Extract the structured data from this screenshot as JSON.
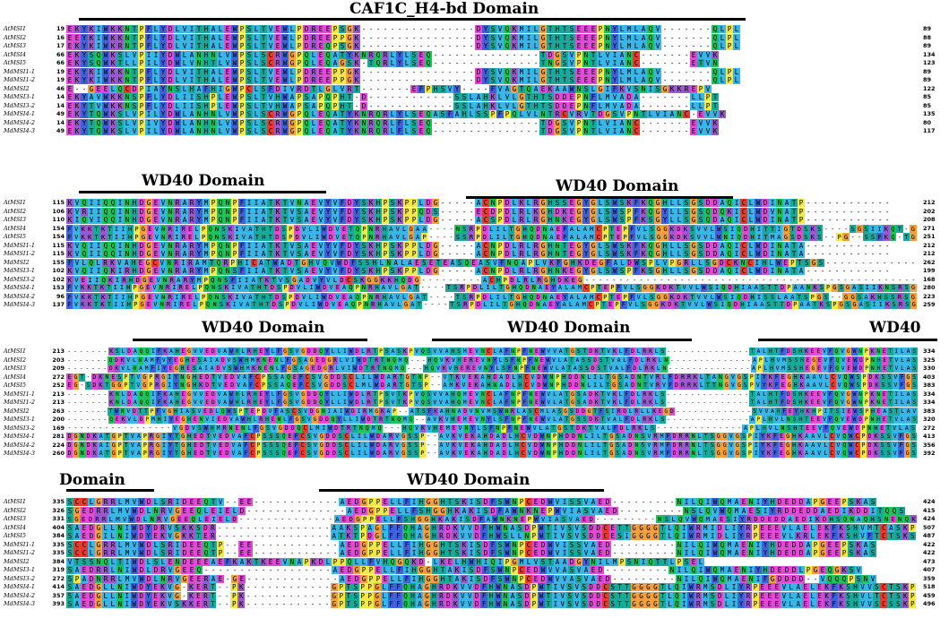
{
  "colors": {
    "cyan": "#39b5e8",
    "blue": "#3f62d8",
    "green": "#1ec45a",
    "teal": "#1aa89a",
    "magenta": "#e04ad6",
    "purple": "#9b59d0",
    "orange": "#f0a040",
    "yellow": "#f2e84a",
    "red": "#e63b2e",
    "gray": "#bfbfbf"
  },
  "domains": [
    {
      "label": "CAF1C_H4-bd Domain"
    },
    {
      "label": "WD40 Domain"
    },
    {
      "label": "WD40 Domain"
    },
    {
      "label": "WD40 Domain"
    },
    {
      "label": "WD40 Domain"
    },
    {
      "label": "WD40"
    },
    {
      "label": "Domain"
    },
    {
      "label": "WD40 Domain"
    }
  ],
  "blocks": [
    {
      "rows": [
        {
          "name": "AtMSI1",
          "start": "19",
          "seq": "EKYKIWKKNTPFLYDLVITHALEWPSLTVEWLPDREEPSGK----------------DYSVQKMILGTHTSEEEPNYLMLAQV-------QLPL",
          "end": "89"
        },
        {
          "name": "AtMSI2",
          "start": "16",
          "seq": "EEYKIWKKNTPFLYDLVITHALEWPSLTVEWLPDREEPPGK----------------DYSVQKMILGTHTSEEEPNYLMLAQV-------QLPL",
          "end": "88"
        },
        {
          "name": "AtMSI3",
          "start": "17",
          "seq": "EKYKIWKRNTPFLYDLVITHALEWPSLTVEWLPDREQPSGK----------------DYSVQKMILGTHTSEEEPNYLMLAQV-------QLPL",
          "end": "89"
        },
        {
          "name": "AtMSI4",
          "start": "66",
          "seq": "EKYSQWKSLVPIIYDWLANHNLVWPSLSCRWGPQLEQATYKNRQRLYLSEQ---------------TDGSVPNTLVIANC-------EVVK",
          "end": "134"
        },
        {
          "name": "AtMSI5",
          "start": "66",
          "seq": "EKYSQWKTLLPILYDWLVNHTLVWPSLSCRWGPQLEQAGSK-TQRLYLSEQ---------------TNGSVPNTLVIANC-------ETVN",
          "end": "123"
        },
        {
          "name": "MdMSI1-1",
          "start": "19",
          "seq": "EKYKIWKKNTPFLYDLVITHALEWPSLTVEWLPDREEPPGK----------------DYSVQKMILGTHTSEEEPNYLMLAQV-------QLPL",
          "end": "89"
        },
        {
          "name": "MdMSI1-2",
          "start": "19",
          "seq": "EKYKIWKKNTPFLYDLVITHALEWPSLTVEWLPDREEPPGK----------------DYSVQKMILGTHTSEEEPNYLMLAQV-------QLPL",
          "end": "89"
        },
        {
          "name": "MdMSI2",
          "start": "46",
          "seq": "E--GEELQCDPIAYNSLHAFHIGWPCLSFDIVRDTLGLVRT-------EFPHSVY----FVAGTQAEKAAWNSLGIFKVSNISGKKREPV",
          "end": "122"
        },
        {
          "name": "MdMSI3-1",
          "start": "14",
          "seq": "EKYAVWKKNSPFLYDLIISHPLEWPSLTVHWAPSAPQPHT-D------------SSLAHKLVLGTHTSDDEPNFLMVADA-------LLPT",
          "end": "85"
        },
        {
          "name": "MdMSI3-2",
          "start": "14",
          "seq": "EKYTVWKKNSPFLYDLIISHPLEWPSLTVHWAPSAPQPHT-D------------SSLAHKLVLGTHTSDDEPNFLMVADA-------LLPT",
          "end": "85"
        },
        {
          "name": "MdMSI4-1",
          "start": "49",
          "seq": "EKYTQWKSLVPILYDWLANHNLVWPSLSCRWGPQLEQATYKNRQRLYLSEQASFAHLSSPFPQLVLNTRCVRVTDGSVPNTLVIANC-EVVK",
          "end": "135"
        },
        {
          "name": "MdMSI4-2",
          "start": "14",
          "seq": "EKYTQWKSLVPIVYDWLANHNLVWPSLSCRWGPQLEQATYKNRQRLFLSEQ---------------TDGSVPNTLVIANC-------EVVK",
          "end": "80"
        },
        {
          "name": "MdMSI4-3",
          "start": "49",
          "seq": "EKYTQWKSLVPILYDWLANHNLVWPSLSCRWGPQLEQATYKNRQRLFLSEQ---------------TDGSVPNTLVIANC-------EVVK",
          "end": "117"
        }
      ]
    },
    {
      "rows": [
        {
          "name": "AtMSI1",
          "start": "115",
          "seq": "KVQIIQQINHDGEVNRARYMPQNPFIIATKTVNAEVYVFDYSKHPSKPPLDG-----ACNPDLKLRGHSSEGYGLSWSKFKQGHLLSGSDDAQICLWDINATP------------",
          "end": "212"
        },
        {
          "name": "AtMSI2",
          "start": "106",
          "seq": "KVRIIQQINHDGEVNRARYMPQNPFIIATKTVSAEVYVFDYSKHPSKPPQDS-----ECDPDLRLKGHDKEGYGLSWSPFKQGYLLSGSQDQKICLWDVNATP------------",
          "end": "202"
        },
        {
          "name": "AtMSI3",
          "start": "110",
          "seq": "KIQVIQQINHDGEVNRARYMPQNPFIIATKTVSAEVYVFDYSKHPSKPPLDG-----ACSPDLRLRGHNKEGYGLSWSPFKSGYLLSGSQDAQICLWDINATP------------",
          "end": "208"
        },
        {
          "name": "AtMSI4",
          "start": "154",
          "seq": "FVKKTKTIIHPGEVNRIRELPQNSKIVATHTDSPDVLIWDVETQPNRHAVLGAA----NSRPDLILTGHQDNAEFALAMCPTEPFVLSGGKDKSVVLWSIQDHITTIGTDSKS----SGSIIKQT-G",
          "end": "271"
        },
        {
          "name": "AtMSI5",
          "start": "154",
          "seq": "FVKKTKTIIHPGEVNRIRELPQNSKIVATHTDSPDVLIWDVETQPNRHAVLGAP----SSRPDLILTGHQDNAEFALAMCPTEPFVLSGGKDKSVVLWNIQDHITMAGSDSKS--PG--SSFKQ-TG",
          "end": "251"
        },
        {
          "name": "MdMSI1-1",
          "start": "115",
          "seq": "KVQIIQQINHDGEVNRARYMPQNPFIIATKTVSAEVYVFDYSKHPSKPPLDG-----ACNPDLRLRGHNTEGYGLSWSKFKQGHLLSGSDDAQICLWDINATA------------",
          "end": "212"
        },
        {
          "name": "MdMSI1-2",
          "start": "115",
          "seq": "KVQIIQQINHDGEVNRARYMPQNPFIIATKTVSAEVYVFDYSKHPSKPPLDG-----ACNPDLRLRGHNTEGYGLSWSKFKQGHLLSGSDDAQICLWDINATA------------",
          "end": "212"
        },
        {
          "name": "MdMSI2",
          "start": "155",
          "seq": "FVLQLRKVAHEGCVNRIRAMTQRPHICATWADTGHVQVWDFSSHLNALAESETEASQEASVFNQAPLVKFGHKDEGFALDWSPLVPGRLLSGDCKNCIHLWEPTSGS-------------",
          "end": "262"
        },
        {
          "name": "MdMSI3-1",
          "start": "102",
          "seq": "KVQIIQKIRHDGEVNRARYMPQNSFIIATKTVSAEVYVFDYSKHPSKPPLDG-----ACNPDLRLRGHNKEGYGLSWSPFKSGHLLSGSDDAQICLWDINATA------------",
          "end": "199"
        },
        {
          "name": "MdMSI3-2",
          "start": "102",
          "seq": "KVEIIQKIRHDGEVNRARYMPQNSFIIATKTVSGADVYVLDCSKGGKKHQDG---------ACHPDLRLRGHDKEG-------------------------------------------------",
          "end": "168"
        },
        {
          "name": "MdMSI4-1",
          "start": "153",
          "seq": "FVKKTKTIIHPGEVNRIRELPQNSKIVATHTDSPDVLIWDVEAQPNRHAVLGAT----TSRPDLILTGHQDNAEYALAMCPTEPFVLSGGKDKTVVLWSIQDHIAASTTDPAANKSPGSGASIIKNSRSG",
          "end": "280"
        },
        {
          "name": "MdMSI4-2",
          "start": "96",
          "seq": "FVKKTKTIIHPGEVNRIRELPQNSKIVATHTDSPDVLIWDVEAQPNRHAVLGAT----TSRPDLILTGHQDNAEYALAMCPTEPFVLSGGKDKTVVLWSIQDHISSLAATSPGS--GGSAKHSSRSG",
          "end": "223"
        },
        {
          "name": "MdMSI4-3",
          "start": "137",
          "seq": "FVKKTKTIIHPGEVNRIRELPQNSKIVATHTDSPDVLIWDVEAQPNRHAVLGAT----TSRPDLILTGHQDNAEYALAMCPTEPFVLSGGKDKTVVLWSIQDHIAASTTDPAATKSPGSGASIIKSRSG",
          "end": "259"
        }
      ]
    },
    {
      "rows": [
        {
          "name": "AtMSI1",
          "start": "213",
          "seq": "-------KSLDAQQIFKAHEGVVEDVAWHLRHEYLFGSVGDDQYLLIWDLRTPSASKPVQSVVAHSMEVNCLAFNPFNEWVVATGSTDKTVKLFDLRKLS--------------TALHTFDSHKEEVFQVGWNPKNETILAS",
          "end": "334"
        },
        {
          "name": "AtMSI2",
          "start": "203",
          "seq": "-------QDKVLNAMFVYEGHESAIADVSWHMKNENLFGSAGEDGRLVIWDTRTNQMQ---HQVKVHEREVNYLSFNPFNEWVLATASSDSTVALFDLRKLN--------------APLHVMSSHEGEVFQVEWDPNHETVLAS",
          "end": "325"
        },
        {
          "name": "AtMSI3",
          "start": "209",
          "seq": "-------DKVLNAMFIYEGHESAIADVSWHMKNENLFGSAGEDGRLVIWDTRTNQMQ---HQVKVHEREVNYLSFNPFNEWVLATASSDSTVALFDLRKLN--------------APLHVMSSHEGEVFQVEWDPNHETVLAS",
          "end": "330"
        },
        {
          "name": "AtMSI4",
          "start": "272",
          "seq": "EGT-DKNESPTVGPRGIYNGHEDTVEDVAFCPSSAQEFCSVGDDSCLILWDARTGTNP--VTKVEKAHDADLHCVDWNPHDDNLILTGSADNTVRLFDRRKLTANGVGSPIYKFEGHKAAVLCVQWSPDKSSVFGS",
          "end": "403"
        },
        {
          "name": "AtMSI5",
          "start": "252",
          "seq": "EG-SDKTGGPTVGPRGIYNGHKDTVEDVAFCPSSAQEFCSVGDDSCLMLWDARTGTSP--AMKVEKAHNADLHCVDWNPHDDNLILTGSADNTVRVFDRRKLTTNGVGSPVYKFEGHKAAVLCVQWSPDKSSVFGS",
          "end": "383"
        },
        {
          "name": "MdMSI1-1",
          "start": "213",
          "seq": "-------KNLDAQQIFKAHEGVVEDVAWHLRHEYLFGSVGDDQYLLIWDLRTPSVTKPVQSVVAHQMEVNCLAFNPFNEWVLATGSADKTVKLFDLRKLS--------------TALHTFDSHKEEVFQVGWNPKNETILAS",
          "end": "334"
        },
        {
          "name": "MdMSI1-2",
          "start": "213",
          "seq": "-------KNLDAQQIFKAHEGVVEDVAWHLRHEYLFGSVGDDQYLLIWDLRTPSVTKPVQSVVAHQMEVNCLAFNPFNEWVLATGSADKTVKLFDLRKLS--------------TALHTFDSHKEEVFQVGWNPKNETILAS",
          "end": "334"
        },
        {
          "name": "MdMSI2",
          "start": "263",
          "seq": "-------TWNVDTTPFVGHIASVEDLQWSPTEPDVFASCSVDGNIAIWDIRMGKAP--ATSFKAHNADVNVMSWNRLASCMLASGSDDGTFSIRDLRLLKEGD-------------SVVAHFEYHKHPITSIEWSPHEASTLAV",
          "end": "383"
        },
        {
          "name": "MdMSI3-1",
          "start": "200",
          "seq": "-------QEKVLDPMHIYEGHENVIEDVAWHLRHENLFGSVGDDQYLLIWDTRTNQMQ--AVKVHEMEVNYLSFNPFNEWVLATGSSDKTVALFDLRKLS--------------APLHVLNSHTEEVFQVEWDPNHETVLAS",
          "end": "320"
        },
        {
          "name": "MdMSI3-2",
          "start": "169",
          "seq": "-----------------VGDVSWHMRNENLFGSVGDDQCLMIWDTRTNQMQ---HQVKVHEMEVNYLSFNPFNEWVLATGSTDKTVALFDLRKLS--------------APLHVLNSHTEEVFQVEWDPNHETVLAS",
          "end": "272"
        },
        {
          "name": "MdMSI4-1",
          "start": "281",
          "seq": "DGNDKATGPTVAPRGIYTGHEDTVEDVAFCPSSSQEFCSVGDDSCLILWDARVGSSP--AVKVEKAHDADLHCVDWNPHDDNLILTGSADNSVRMFDRRNLTSGGVGSPIYKFEGHKAAVLCVQWCPDKSSVFGS",
          "end": "413"
        },
        {
          "name": "MdMSI4-2",
          "start": "224",
          "seq": "DGNDKAIGPTVAPRGIYTGHEDTVEDVAFCPSSSQEFCSVGDDSCLILWDARVGSSP--AVKVEKAHDADLHCVDWNPHDDNLILTGSADNSVRMFDRRNLTSGGVGSPIYKFEGHKAAVLCVQWCPDKSSVFGS",
          "end": "356"
        },
        {
          "name": "MdMSI4-3",
          "start": "260",
          "seq": "DGNDKATGPTVAPRGIYTGHEDTVEDVAFCPSSSQEFCSVGDDSCLILWDARVGSSP--AVKVEKAHDADLHCVDWNPHDDNLILTGSADNSVRMFDRRNLTSGGVGSPIYKFEGHKAAVLCVQWCPDKSSVFGS",
          "end": "392"
        }
      ]
    },
    {
      "rows": [
        {
          "name": "AtMSI1",
          "start": "335",
          "seq": "SCCLGRRLMVWDLSRIDEEQTV--EE------------AEDGPPELLFIHGGHTSKISDFSWNPCEDWVISSVAED---------NILQIWQMAENIYHDEDDAPGEEPSKAS",
          "end": "424"
        },
        {
          "name": "AtMSI2",
          "start": "326",
          "seq": "SGEDRRLMVWDLNRVGEEQLEIELD--------------AEDGPPELLFSHGGHKAKISDFAWNKNEPWVIASVAED---------NSLQVWQMAESIYRDDEDDAEDIKDDITQQS",
          "end": "415"
        },
        {
          "name": "AtMSI3",
          "start": "331",
          "seq": "SGEDRRLMVWDLNRVGEEQLEIELD--------------AEDGPPELLFSHGGHKAKISDFAWNKNEPWVIASVAED---------NSLQVWQMAESIYRDDEDDAEDIKDHSQNAQHSNENQK",
          "end": "424"
        },
        {
          "name": "AtMSI4",
          "start": "404",
          "seq": "SAEDGLLNIWDYDRVSKKSDR----------------AAKSPAGLFFQHAGHRDKVVDFHWNASDPWTIVSVSDDCETTGGGGTLQIWRMIDLIYRPEEEVLAELEKFKSHVMTCASKP",
          "end": "507"
        },
        {
          "name": "AtMSI5",
          "start": "384",
          "seq": "SAEDGILNIWDYEKVGKKTER----------------ATKTPDGLFFQHAGHRDKVVDFHWSLLNPWTIVSVSDDCESIGGGGTLQIWRMIDLIYRPEEEVLKRLEKFKSHVFTCTSKS",
          "end": "487"
        },
        {
          "name": "MdMSI1-1",
          "start": "335",
          "seq": "SCCLGRRLMVWDLSRIDEEQTP--EE------------AEDGPPELLFIHGGHTSKISDFSWNPCEDWVISSVAED---------NILQIWQMAENIYHDEDDAPGEEPSKAS",
          "end": "422"
        },
        {
          "name": "MdMSI1-2",
          "start": "335",
          "seq": "SCCLGRRLMVWDLSRIDEEQTP--EE------------AEDGPPELLFIHGGHTSKISDFSWNPCEDWVISSVAED---------NILQIWQMAENIYHDEDDAPGEEPSKAS",
          "end": "422"
        },
        {
          "name": "MdMSI2",
          "start": "384",
          "seq": "VTSSNQLTIWDLSLENDEEEAEFKAKTKEEVNAPKDLPPQLLFVHQGQKD-LKELHWHIQIPGMLVSTAADGYNILMPSNIQTTLPSEL",
          "end": "473"
        },
        {
          "name": "MdMSI3-1",
          "start": "319",
          "seq": "SAEDRRLNIWDLDRVGEEQ------------------AEDGPPELLFIHGGHTAKISDFSWNPCEDWVVASVAED---------NILQIWQMAENIYHDEDDLPGEQGKSV",
          "end": "407"
        },
        {
          "name": "MdMSI3-2",
          "start": "272",
          "seq": "SPADNRRLMVWDLNRVGEERAE-GE-------------AEDGPPELLFIHGGHTAKISDFSWNPCEDWVVASVAED---------NILQIWQMAENIFGDDDD--VQQQPSNV",
          "end": "359"
        },
        {
          "name": "MdMSI4-1",
          "start": "414",
          "seq": "SAEDGLLNIWDYEKVG-KERT--PK------------GPTSPPGLFFQHAGHRDKVVDFHWNASDPWTIVSVSDDCSTTGGGGTLQIWRMSDLIYRPEEEVLAELEKFKSHVVSCTSKP",
          "end": "518"
        },
        {
          "name": "MdMSI4-2",
          "start": "357",
          "seq": "SAEDGLLNIWDYEKVG-KERT--PK------------GPTSPPGLFFQHAGHRDKVVDFHWNASDPWTIVSVSDDCSTTGGGGTLQIWRMSDLIYRPEEEVLAELEKFKSHVLTCTSKP",
          "end": "459"
        },
        {
          "name": "MdMSI4-3",
          "start": "393",
          "seq": "SAEDGLLNIWDYEKVSKKERT--PK------------GPTSPPGLFFQHAGHRDKVVDFHWNASDPWTIVSVSDDCSTTGGGGTLQIWRMSDLIYRPEEEVLAELEKFKSHVVSCSSKP",
          "end": "496"
        }
      ]
    }
  ]
}
